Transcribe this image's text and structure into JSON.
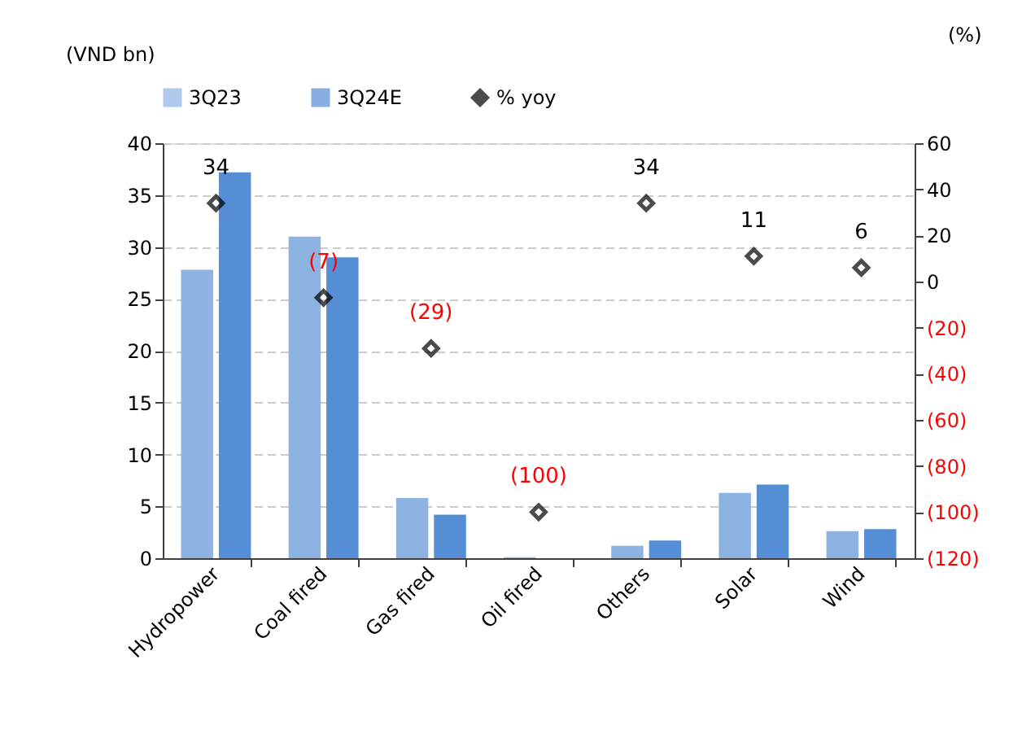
{
  "chart_data": {
    "type": "bar",
    "categories": [
      "Hydropower",
      "Coal fired",
      "Gas fired",
      "Oil fired",
      "Others",
      "Solar",
      "Wind"
    ],
    "ylabel": "(VND bn)",
    "y2label": "(%)",
    "ylim": [
      0,
      40
    ],
    "yticks": [
      0,
      5,
      10,
      15,
      20,
      25,
      30,
      35,
      40
    ],
    "y2lim": [
      -120,
      60
    ],
    "y2ticks": [
      {
        "value": -120,
        "label": "(120)"
      },
      {
        "value": -100,
        "label": "(100)"
      },
      {
        "value": -80,
        "label": "(80)"
      },
      {
        "value": -60,
        "label": "(60)"
      },
      {
        "value": -40,
        "label": "(40)"
      },
      {
        "value": -20,
        "label": "(20)"
      },
      0,
      20,
      40,
      60
    ],
    "grid": "y",
    "legend": "top",
    "series": [
      {
        "name": "3Q23",
        "color": "#8db3e2",
        "values": [
          27.8,
          31.0,
          5.8,
          0.1,
          1.2,
          6.3,
          2.6
        ]
      },
      {
        "name": "3Q24E",
        "color": "#558ed5",
        "values": [
          37.2,
          29.0,
          4.2,
          0,
          1.7,
          7.1,
          2.8
        ]
      },
      {
        "name": "% yoy",
        "type": "scatter",
        "axis": "y2",
        "color": "#000000",
        "marker": "diamond",
        "values": [
          34,
          -7,
          -29,
          -100,
          34,
          11,
          6
        ],
        "value_labels": [
          "34",
          "(7)",
          "(29)",
          "(100)",
          "34",
          "11",
          "6"
        ]
      }
    ]
  }
}
